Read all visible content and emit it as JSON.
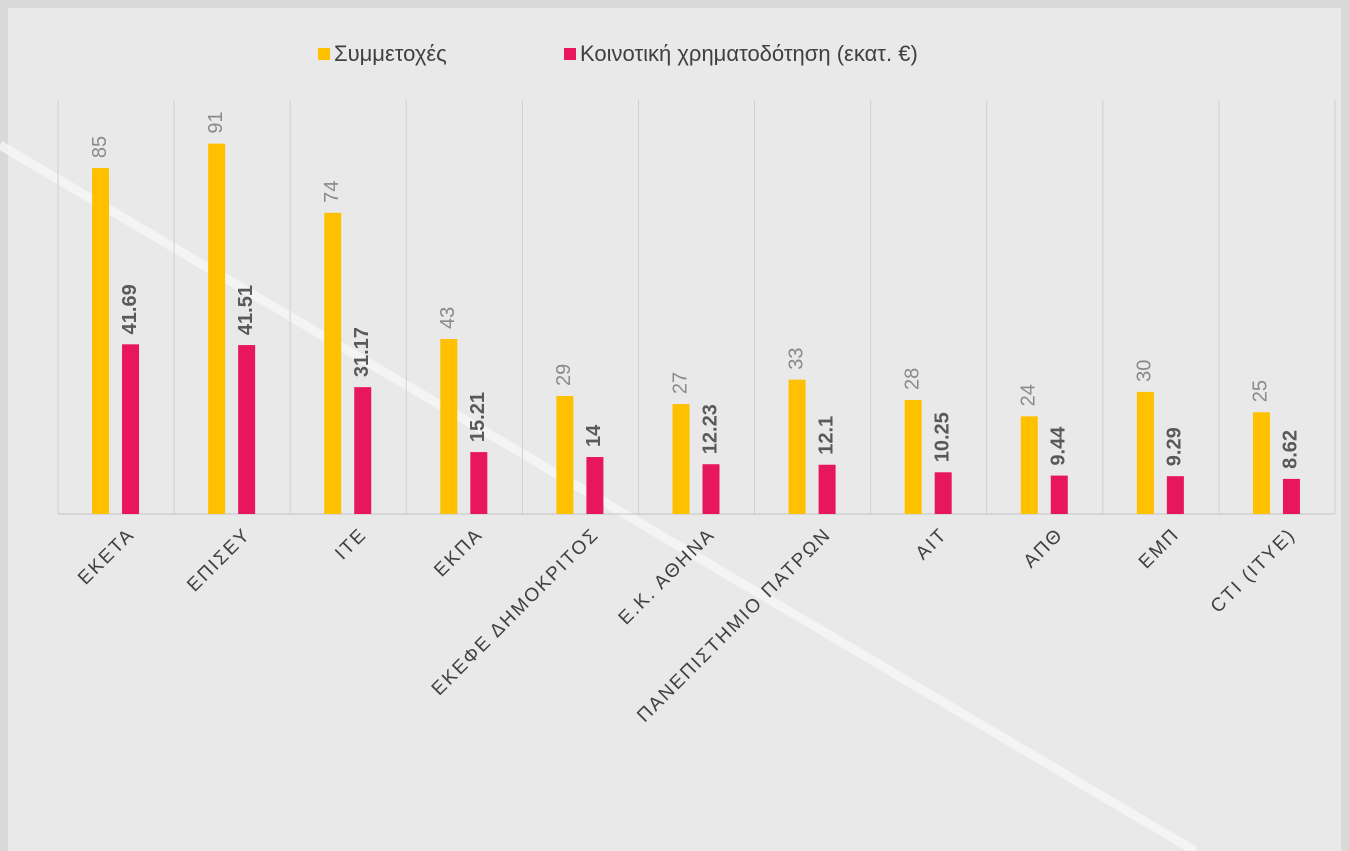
{
  "chart_data": {
    "type": "bar",
    "categories": [
      "ΕΚΕΤΑ",
      "ΕΠΙΣΕΥ",
      "ΙΤΕ",
      "ΕΚΠΑ",
      "ΕΚΕΦΕ ΔΗΜΟΚΡΙΤΟΣ",
      "Ε.Κ. ΑΘΗΝΑ",
      "ΠΑΝΕΠΙΣΤΗΜΙΟ ΠΑΤΡΩΝ",
      "ΑΙΤ",
      "ΑΠΘ",
      "ΕΜΠ",
      "CTI (ΙΤΥΕ)"
    ],
    "series": [
      {
        "name": "Συμμετοχές",
        "color": "#ffc000",
        "values": [
          85,
          91,
          74,
          43,
          29,
          27,
          33,
          28,
          24,
          30,
          25
        ]
      },
      {
        "name": "Κοινοτική χρηματοδότηση (εκατ. €)",
        "color": "#e8175d",
        "values": [
          41.69,
          41.51,
          31.17,
          15.21,
          14,
          12.23,
          12.1,
          10.25,
          9.44,
          9.29,
          8.62
        ]
      }
    ],
    "ylim": [
      0,
      100
    ],
    "legend": "top"
  }
}
